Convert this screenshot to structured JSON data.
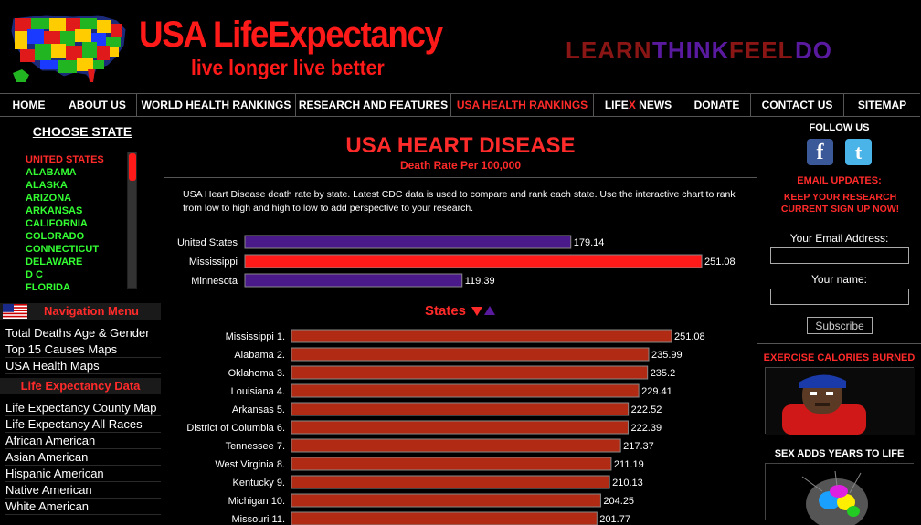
{
  "header": {
    "title": "USA LifeExpectancy",
    "tagline": "live longer live better",
    "motto": [
      {
        "text": "LEARN",
        "color": "#8a1515"
      },
      {
        "text": "THINK",
        "color": "#5a1aa0"
      },
      {
        "text": "FEEL",
        "color": "#8a1515"
      },
      {
        "text": "DO",
        "color": "#5a1aa0"
      }
    ]
  },
  "nav": {
    "items": [
      "HOME",
      "ABOUT US",
      "WORLD HEALTH RANKINGS",
      "RESEARCH AND FEATURES",
      "USA HEALTH RANKINGS",
      "LIFE",
      "DONATE",
      "CONTACT US",
      "SITEMAP"
    ],
    "lifex_x": "X",
    "lifex_suffix": "NEWS",
    "active": "USA HEALTH RANKINGS"
  },
  "left": {
    "choose_label": "CHOOSE STATE",
    "states": [
      "UNITED STATES",
      "ALABAMA",
      "ALASKA",
      "ARIZONA",
      "ARKANSAS",
      "CALIFORNIA",
      "COLORADO",
      "CONNECTICUT",
      "DELAWARE",
      "D C",
      "FLORIDA"
    ],
    "nav_menu_title": "Navigation Menu",
    "nav_menu": [
      "Total Deaths Age & Gender",
      "Top 15 Causes Maps",
      "USA Health Maps"
    ],
    "life_exp_title": "Life Expectancy Data",
    "life_exp": [
      "Life Expectancy County Map",
      "Life Expectancy All Races",
      "African American",
      "Asian American",
      "Hispanic American",
      "Native American",
      "White American"
    ]
  },
  "main": {
    "title": "USA HEART DISEASE",
    "subtitle": "Death Rate Per 100,000",
    "intro": "USA Heart Disease death rate by state. Latest CDC data is used to compare and rank each state. Use the interactive chart to rank from low to high and high to low to add perspective to your research.",
    "states_label": "States"
  },
  "chart_data": [
    {
      "type": "bar",
      "orientation": "horizontal",
      "categories": [
        "United States",
        "Mississippi",
        "Minnesota"
      ],
      "values": [
        179.14,
        251.08,
        119.39
      ],
      "colors": [
        "#4b1a8a",
        "#ff1a1a",
        "#4b1a8a"
      ],
      "xlim": [
        0,
        251.08
      ]
    },
    {
      "type": "bar",
      "orientation": "horizontal",
      "categories": [
        "Mississippi 1.",
        "Alabama 2.",
        "Oklahoma 3.",
        "Louisiana 4.",
        "Arkansas 5.",
        "District of Columbia 6.",
        "Tennessee 7.",
        "West Virginia 8.",
        "Kentucky 9.",
        "Michigan 10.",
        "Missouri 11."
      ],
      "values": [
        251.08,
        235.99,
        235.2,
        229.41,
        222.52,
        222.39,
        217.37,
        211.19,
        210.13,
        204.25,
        201.77
      ],
      "value_labels": [
        "251.08",
        "235.99",
        "235.2",
        "229.41",
        "222.52",
        "222.39",
        "217.37",
        "211.19",
        "210.13",
        "204.25",
        "201.77"
      ],
      "color": "#b02a14",
      "xlim": [
        0,
        251.08
      ]
    }
  ],
  "right": {
    "follow": "FOLLOW US",
    "fb_glyph": "f",
    "tw_glyph": "t",
    "email_updates": "EMAIL UPDATES:",
    "keep": "KEEP YOUR RESEARCH CURRENT SIGN UP NOW!",
    "email_label": "Your Email Address:",
    "name_label": "Your name:",
    "subscribe": "Subscribe",
    "exercise_title": "EXERCISE CALORIES BURNED",
    "sex_title": "SEX ADDS YEARS TO LIFE"
  }
}
